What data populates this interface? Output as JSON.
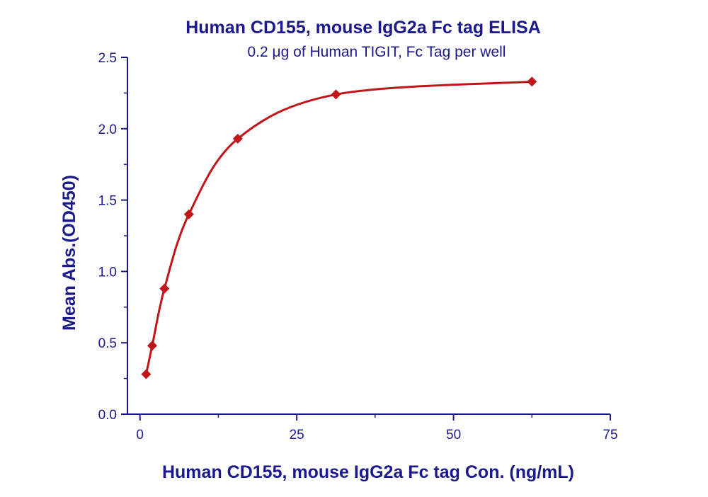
{
  "colors": {
    "text": "#1a1a8c",
    "axis": "#1a1a8c",
    "series": "#c0161a"
  },
  "chart_data": {
    "type": "scatter",
    "title": "Human CD155, mouse IgG2a Fc tag ELISA",
    "subtitle": "0.2 μg of Human TIGIT, Fc Tag per well",
    "xlabel": "Human CD155, mouse IgG2a Fc tag Con. (ng/mL)",
    "ylabel": "Mean Abs.(OD450)",
    "xlim": [
      -2,
      75
    ],
    "ylim": [
      0,
      2.5
    ],
    "xticks": [
      0,
      25,
      50,
      75
    ],
    "xtick_labels": [
      "0",
      "25",
      "50",
      "75"
    ],
    "yticks": [
      0,
      0.5,
      1.0,
      1.5,
      2.0,
      2.5
    ],
    "ytick_labels": [
      "0.0",
      "0.5",
      "1.0",
      "1.5",
      "2.0",
      "2.5"
    ],
    "grid": false,
    "legend": "none",
    "marker": "diamond",
    "fit_curve": true,
    "series": [
      {
        "x": [
          0.98,
          1.95,
          3.9,
          7.8,
          15.6,
          31.25,
          62.5
        ],
        "y": [
          0.28,
          0.48,
          0.88,
          1.4,
          1.93,
          2.24,
          2.33
        ]
      }
    ]
  }
}
